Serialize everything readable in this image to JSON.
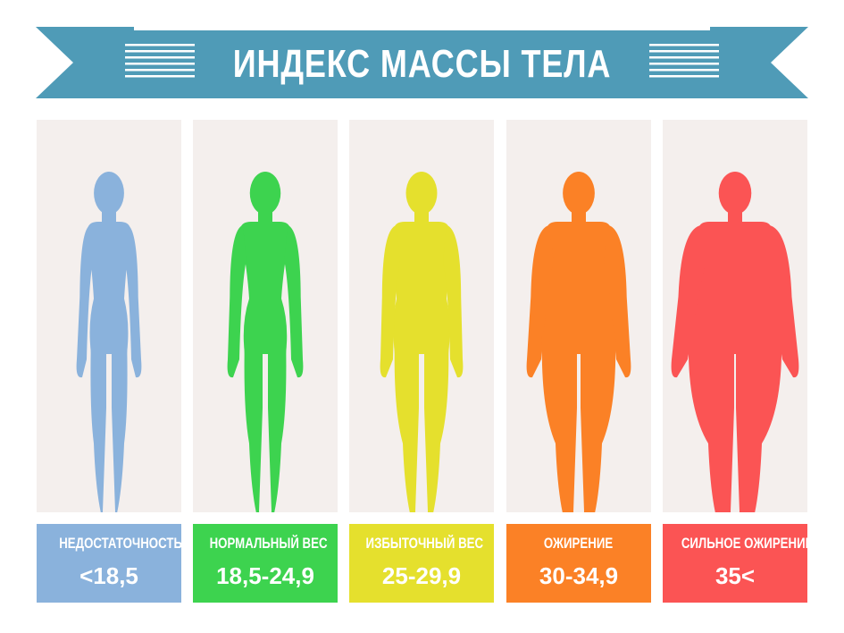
{
  "title": "ИНДЕКС МАССЫ ТЕЛА",
  "colors": {
    "banner": "#4f9bb7",
    "banner_dark": "#2f6f85",
    "panel_bg": "#f4efed"
  },
  "categories": [
    {
      "label": "НЕДОСТАТОЧНОСТЬ ВЕСА",
      "value": "<18,5",
      "color": "#8ab2dc",
      "icon": "underweight-figure-icon"
    },
    {
      "label": "НОРМАЛЬНЫЙ ВЕС",
      "value": "18,5-24,9",
      "color": "#3dd34f",
      "icon": "normal-weight-figure-icon"
    },
    {
      "label": "ИЗБЫТОЧНЫЙ ВЕС",
      "value": "25-29,9",
      "color": "#e5e02d",
      "icon": "overweight-figure-icon"
    },
    {
      "label": "ОЖИРЕНИЕ",
      "value": "30-34,9",
      "color": "#fb8126",
      "icon": "obese-figure-icon"
    },
    {
      "label": "СИЛЬНОЕ ОЖИРЕНИЕ",
      "value": "35<",
      "color": "#fb5454",
      "icon": "severely-obese-figure-icon"
    }
  ]
}
